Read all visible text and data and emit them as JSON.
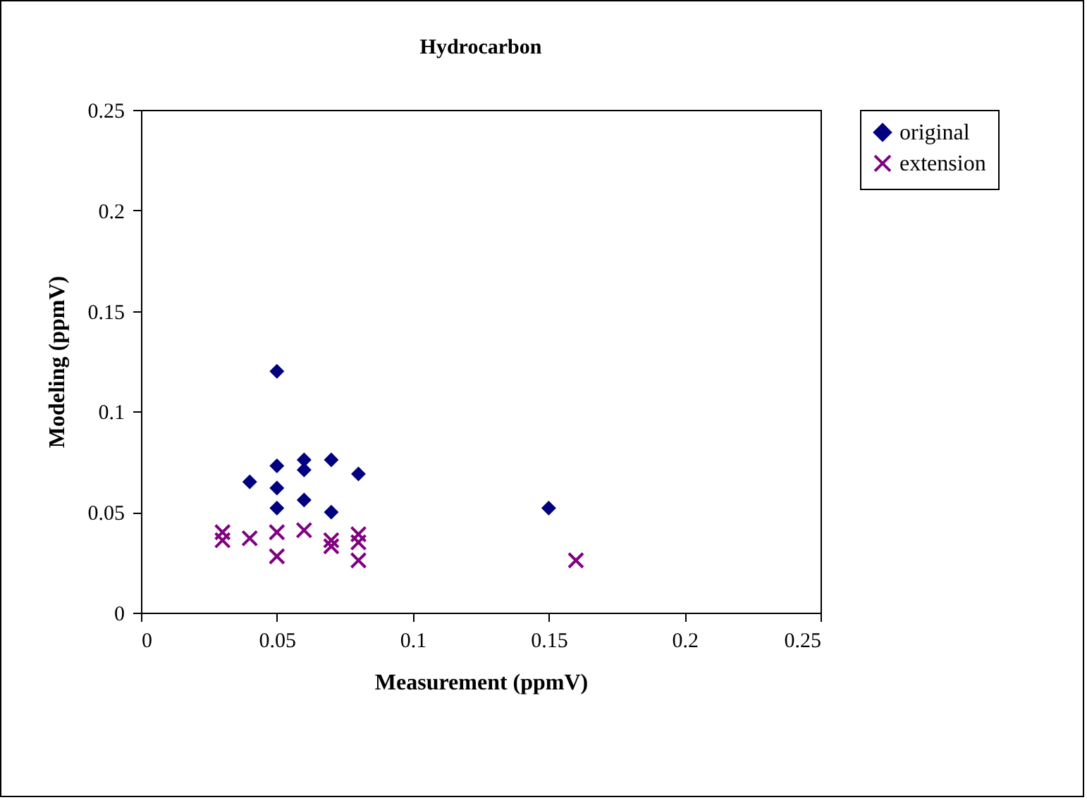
{
  "chart_data": {
    "type": "scatter",
    "title": "Hydrocarbon",
    "xlabel": "Measurement (ppmV)",
    "ylabel": "Modeling (ppmV)",
    "xlim": [
      0,
      0.25
    ],
    "xticks": [
      0,
      0.05,
      0.1,
      0.15,
      0.2,
      0.25
    ],
    "ylim": [
      0,
      0.25
    ],
    "yticks": [
      0,
      0.05,
      0.1,
      0.15,
      0.2,
      0.25
    ],
    "grid": false,
    "legend": "right",
    "series": [
      {
        "name": "original",
        "color": "#000080",
        "marker": "diamond",
        "x": [
          0.05,
          0.05,
          0.05,
          0.05,
          0.04,
          0.06,
          0.06,
          0.06,
          0.07,
          0.07,
          0.08,
          0.15
        ],
        "values": [
          0.12,
          0.073,
          0.062,
          0.052,
          0.065,
          0.076,
          0.071,
          0.056,
          0.076,
          0.05,
          0.069,
          0.052
        ]
      },
      {
        "name": "extension",
        "color": "#800080",
        "marker": "cross",
        "x": [
          0.03,
          0.03,
          0.04,
          0.05,
          0.05,
          0.06,
          0.07,
          0.07,
          0.08,
          0.08,
          0.08,
          0.16
        ],
        "values": [
          0.04,
          0.036,
          0.037,
          0.04,
          0.028,
          0.041,
          0.036,
          0.033,
          0.039,
          0.035,
          0.026,
          0.026
        ]
      }
    ]
  }
}
